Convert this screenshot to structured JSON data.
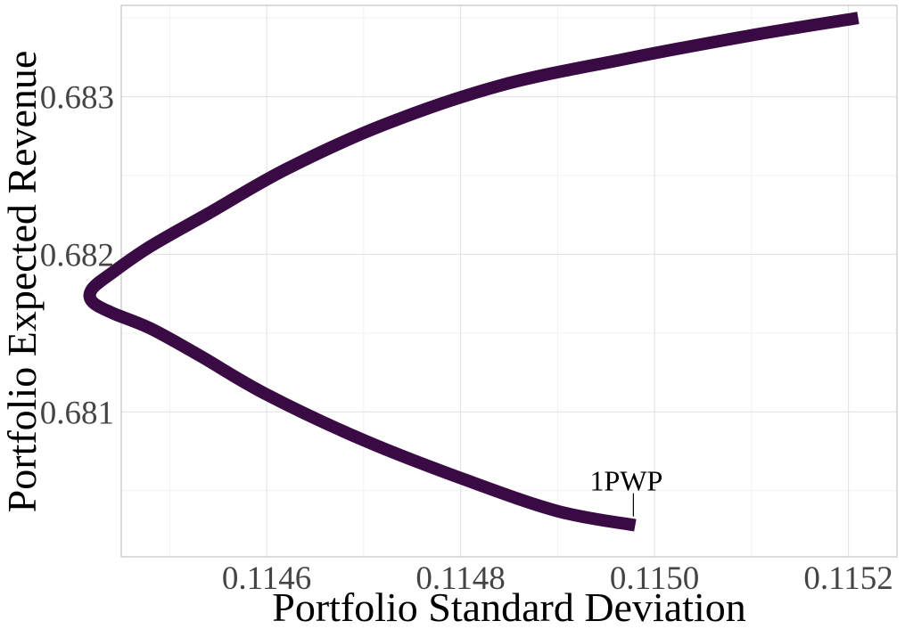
{
  "chart_data": {
    "type": "line",
    "title": "",
    "xlabel": "Portfolio Standard Deviation",
    "ylabel": "Portfolio Expected Revenue",
    "xlim": [
      0.11445,
      0.11525
    ],
    "ylim": [
      0.68008,
      0.68358
    ],
    "x_ticks": [
      0.1146,
      0.1148,
      0.115,
      0.1152
    ],
    "x_tick_labels": [
      "0.1146",
      "0.1148",
      "0.1150",
      "0.1152"
    ],
    "y_ticks": [
      0.681,
      0.682,
      0.683
    ],
    "y_tick_labels": [
      "0.681",
      "0.682",
      "0.683"
    ],
    "grid": true,
    "legend": "none",
    "series": [
      {
        "color": "#3a0a45",
        "x": [
          0.11498,
          0.1149,
          0.1148,
          0.1147,
          0.1146,
          0.11453,
          0.11448,
          0.11444,
          0.11442,
          0.11442,
          0.11444,
          0.11448,
          0.11454,
          0.11462,
          0.11472,
          0.11484,
          0.11497,
          0.1151,
          0.11521
        ],
        "y": [
          0.68028,
          0.68037,
          0.68058,
          0.68082,
          0.68111,
          0.68136,
          0.68153,
          0.68163,
          0.6817,
          0.68178,
          0.68188,
          0.68205,
          0.68226,
          0.68254,
          0.68282,
          0.68307,
          0.68324,
          0.68339,
          0.6835
        ]
      }
    ],
    "annotations": [
      {
        "text": "1PWP",
        "x": 0.11498,
        "y": 0.68028
      }
    ]
  }
}
